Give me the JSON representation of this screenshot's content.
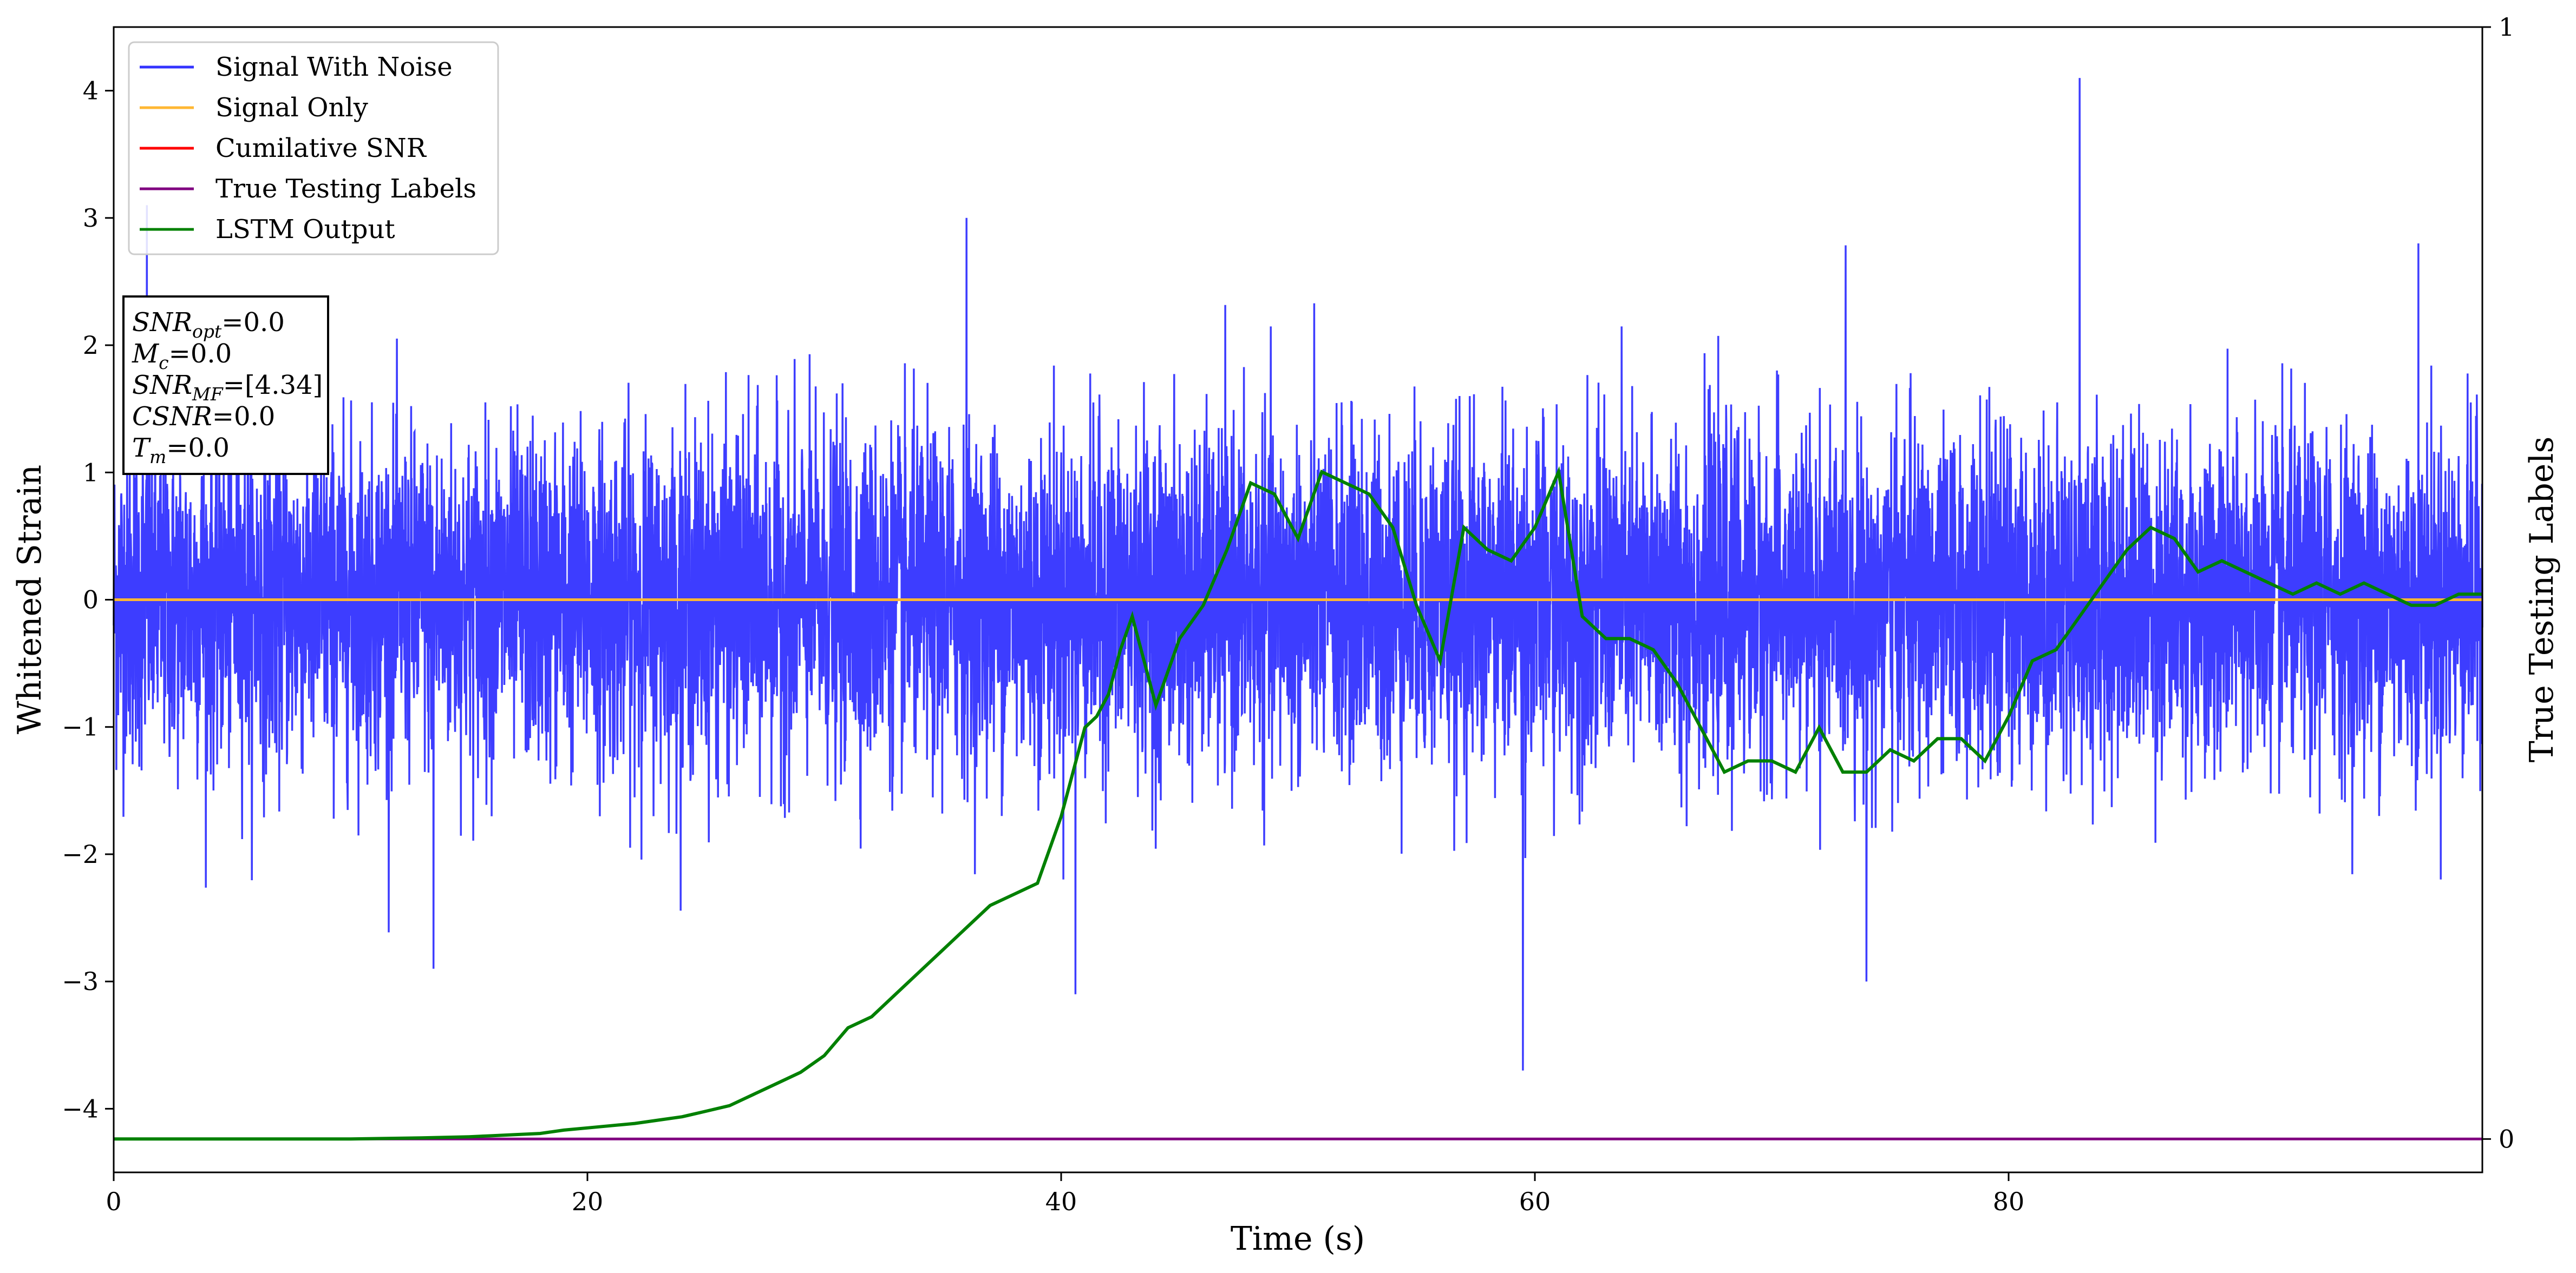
{
  "chart_data": {
    "type": "line",
    "title": "",
    "xlabel": "Time (s)",
    "ylabel": "Whitened Strain",
    "y2label": "True Testing Labels",
    "xlim": [
      0,
      100
    ],
    "ylim": [
      -4.5,
      4.5
    ],
    "y2lim": [
      -0.03,
      1.0
    ],
    "xticks": [
      0,
      20,
      40,
      60,
      80
    ],
    "yticks": [
      -4,
      -3,
      -2,
      -1,
      0,
      1,
      2,
      3,
      4
    ],
    "y2ticks": [
      0,
      1
    ],
    "legend_position": "top-left",
    "grid": false,
    "legend": [
      {
        "name": "Signal With Noise",
        "color": "#3333ff"
      },
      {
        "name": "Signal Only",
        "color": "#ffb733"
      },
      {
        "name": "Cumilative SNR",
        "color": "#ff0000"
      },
      {
        "name": "True Testing Labels",
        "color": "#800080"
      },
      {
        "name": "LSTM Output",
        "color": "#008000"
      }
    ],
    "annotation_lines": [
      {
        "sym": "SNR",
        "sub": "opt",
        "rest": "=0.0"
      },
      {
        "sym": "M",
        "sub": "c",
        "rest": "=0.0"
      },
      {
        "sym": "SNR",
        "sub": "MF",
        "rest": "=[4.34]"
      },
      {
        "sym": "CSNR",
        "sub": "",
        "rest": "=0.0"
      },
      {
        "sym": "T",
        "sub": "m",
        "rest": "=0.0"
      }
    ],
    "series": [
      {
        "name": "Signal With Noise",
        "axis": "left",
        "color": "#3333ff",
        "style": "noise",
        "mean": 0.0,
        "std": 0.65,
        "x_range": [
          0,
          100
        ],
        "peaks": [
          [
            1.4,
            3.1
          ],
          [
            36.0,
            3.0
          ],
          [
            83.0,
            4.1
          ],
          [
            97.3,
            2.8
          ],
          [
            59.5,
            -3.7
          ],
          [
            40.6,
            -3.1
          ],
          [
            13.5,
            -2.9
          ],
          [
            74.0,
            -3.0
          ]
        ]
      },
      {
        "name": "Signal Only",
        "axis": "left",
        "color": "#ffb733",
        "x": [
          0,
          100
        ],
        "y": [
          0,
          0
        ]
      },
      {
        "name": "True Testing Labels",
        "axis": "right",
        "color": "#800080",
        "x": [
          0,
          100
        ],
        "y": [
          0,
          0
        ]
      },
      {
        "name": "LSTM Output",
        "axis": "right",
        "color": "#008000",
        "x": [
          0,
          5,
          10,
          13,
          15,
          16,
          17,
          18,
          19,
          20,
          21,
          22,
          23,
          24,
          25,
          26,
          27,
          28,
          29,
          30,
          31,
          32,
          33,
          34,
          35,
          36,
          37,
          38,
          39,
          40,
          40.5,
          41,
          41.5,
          42,
          42.5,
          43,
          44,
          45,
          46,
          47,
          48,
          49,
          50,
          51,
          52,
          53,
          54,
          55,
          56,
          57,
          58,
          59,
          60,
          61,
          62,
          63,
          64,
          65,
          66,
          67,
          68,
          69,
          70,
          71,
          72,
          73,
          74,
          75,
          76,
          77,
          78,
          79,
          80,
          81,
          82,
          83,
          84,
          85,
          86,
          87,
          88,
          89,
          90,
          91,
          92,
          93,
          94,
          95,
          96,
          97,
          98,
          99,
          100
        ],
        "y": [
          0.0,
          0.0,
          0.0,
          0.001,
          0.002,
          0.003,
          0.004,
          0.005,
          0.008,
          0.01,
          0.012,
          0.014,
          0.017,
          0.02,
          0.025,
          0.03,
          0.04,
          0.05,
          0.06,
          0.075,
          0.1,
          0.11,
          0.13,
          0.15,
          0.17,
          0.19,
          0.21,
          0.22,
          0.23,
          0.29,
          0.33,
          0.37,
          0.38,
          0.4,
          0.44,
          0.47,
          0.39,
          0.45,
          0.48,
          0.53,
          0.59,
          0.58,
          0.54,
          0.6,
          0.59,
          0.58,
          0.55,
          0.48,
          0.43,
          0.55,
          0.53,
          0.52,
          0.55,
          0.6,
          0.47,
          0.45,
          0.45,
          0.44,
          0.41,
          0.37,
          0.33,
          0.34,
          0.34,
          0.33,
          0.37,
          0.33,
          0.33,
          0.35,
          0.34,
          0.36,
          0.36,
          0.34,
          0.38,
          0.43,
          0.44,
          0.47,
          0.5,
          0.53,
          0.55,
          0.54,
          0.51,
          0.52,
          0.51,
          0.5,
          0.49,
          0.5,
          0.49,
          0.5,
          0.49,
          0.48,
          0.48,
          0.49,
          0.49
        ]
      }
    ]
  }
}
